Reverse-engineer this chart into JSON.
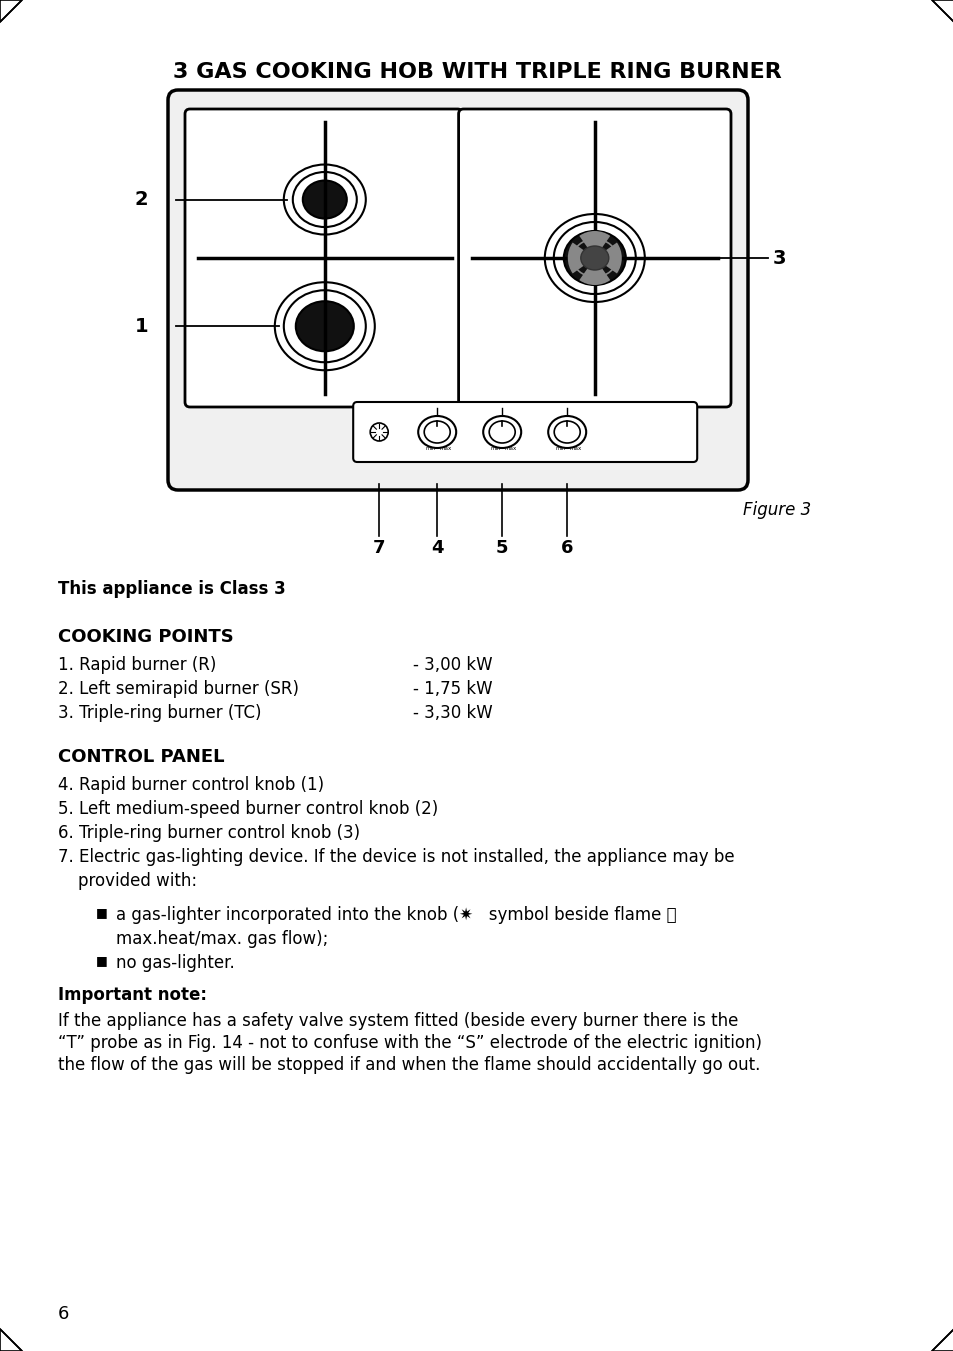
{
  "title": "3 GAS COOKING HOB WITH TRIPLE RING BURNER",
  "figure_label": "Figure 3",
  "class_text": "This appliance is Class 3",
  "cooking_points_title": "COOKING POINTS",
  "cooking_points": [
    "1. Rapid burner (R)",
    "2. Left semirapid burner (SR)",
    "3. Triple-ring burner (TC)"
  ],
  "cooking_kw": [
    "- 3,00 kW",
    "- 1,75 kW",
    "- 3,30 kW"
  ],
  "control_panel_title": "CONTROL PANEL",
  "control_items": [
    "4. Rapid burner control knob (1)",
    "5. Left medium-speed burner control knob (2)",
    "6. Triple-ring burner control knob (3)",
    "7. Electric gas-lighting device. If the device is not installed, the appliance may be\n   provided with:"
  ],
  "bullet_line1": "a gas-lighter incorporated into the knob (✷   symbol beside flame 🔥",
  "bullet_line2": "max.heat/max. gas flow);",
  "bullet_line3": "no gas-lighter.",
  "important_note_title": "Important note:",
  "important_note_lines": [
    "If the appliance has a safety valve system fitted (beside every burner there is the",
    "“T” probe as in Fig. 14 - not to confuse with the “S” electrode of the electric ignition)",
    "the flow of the gas will be stopped if and when the flame should accidentally go out."
  ],
  "page_number": "6",
  "bg_color": "#ffffff",
  "text_color": "#000000"
}
